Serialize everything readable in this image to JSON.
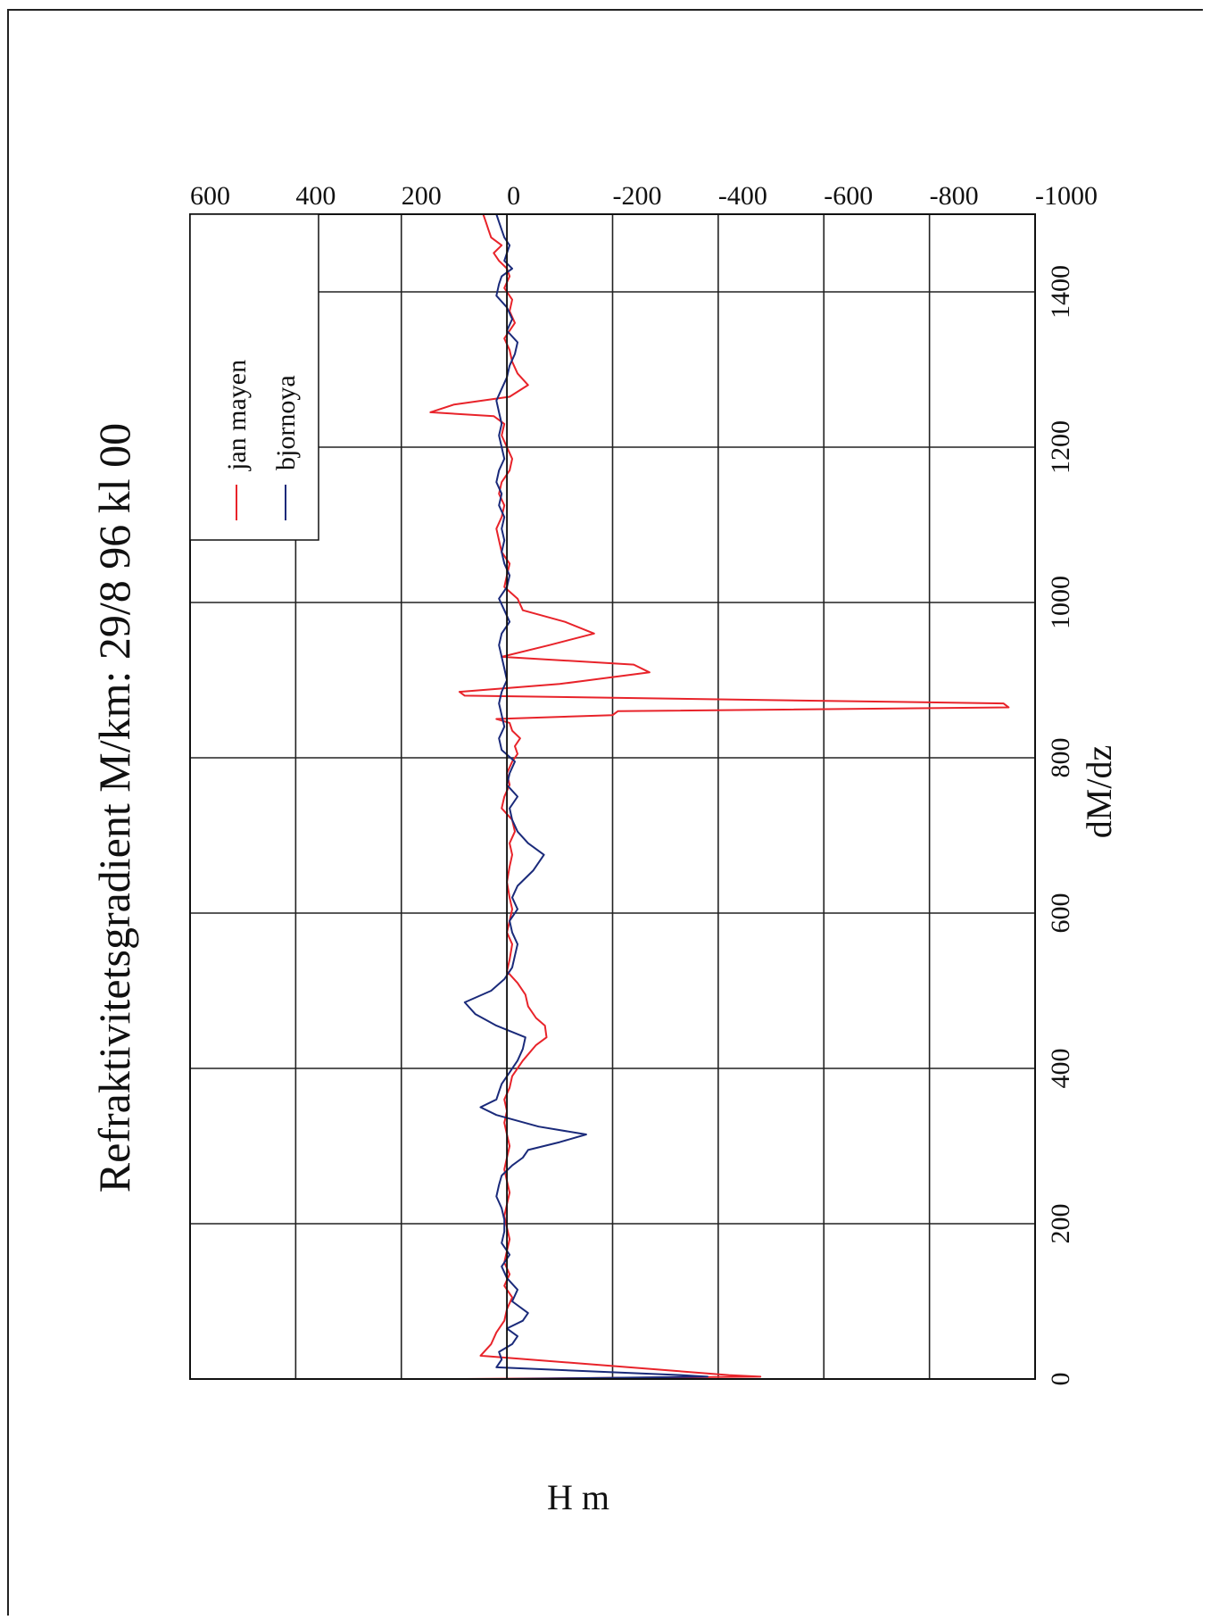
{
  "chart_data": {
    "type": "line",
    "title": "Refraktivitetsgradient M/km: 29/8 96 kl 00",
    "xlabel": "dM/dz",
    "ylabel": "H m",
    "xlim": [
      -1000,
      600
    ],
    "ylim": [
      0,
      1500
    ],
    "xticks": [
      "-1000",
      "-800",
      "-600",
      "-400",
      "-200",
      "0",
      "200",
      "400",
      "600"
    ],
    "yticks": [
      "0",
      "200",
      "400",
      "600",
      "800",
      "1000",
      "1200",
      "1400"
    ],
    "grid": true,
    "legend_position": "top-right",
    "orientation": "rotated 90 degrees counter-clockwise",
    "series": [
      {
        "name": "jan mayen",
        "color": "#e8232a",
        "points": [
          [
            85,
            0
          ],
          [
            -480,
            3
          ],
          [
            -420,
            5
          ],
          [
            50,
            30
          ],
          [
            30,
            45
          ],
          [
            20,
            60
          ],
          [
            5,
            75
          ],
          [
            0,
            90
          ],
          [
            -10,
            105
          ],
          [
            5,
            120
          ],
          [
            -5,
            135
          ],
          [
            5,
            150
          ],
          [
            0,
            165
          ],
          [
            -5,
            180
          ],
          [
            0,
            195
          ],
          [
            5,
            210
          ],
          [
            0,
            225
          ],
          [
            -5,
            240
          ],
          [
            0,
            255
          ],
          [
            5,
            270
          ],
          [
            0,
            285
          ],
          [
            -5,
            300
          ],
          [
            0,
            315
          ],
          [
            5,
            330
          ],
          [
            0,
            345
          ],
          [
            5,
            360
          ],
          [
            -5,
            375
          ],
          [
            -10,
            390
          ],
          [
            -30,
            410
          ],
          [
            -55,
            430
          ],
          [
            -75,
            440
          ],
          [
            -72,
            455
          ],
          [
            -55,
            465
          ],
          [
            -40,
            480
          ],
          [
            -35,
            495
          ],
          [
            -20,
            510
          ],
          [
            0,
            525
          ],
          [
            -5,
            540
          ],
          [
            -10,
            560
          ],
          [
            0,
            575
          ],
          [
            -5,
            590
          ],
          [
            -10,
            605
          ],
          [
            -5,
            620
          ],
          [
            0,
            640
          ],
          [
            -5,
            660
          ],
          [
            -10,
            675
          ],
          [
            -5,
            690
          ],
          [
            -15,
            705
          ],
          [
            -10,
            720
          ],
          [
            10,
            735
          ],
          [
            5,
            750
          ],
          [
            -5,
            765
          ],
          [
            0,
            780
          ],
          [
            -10,
            795
          ],
          [
            -20,
            805
          ],
          [
            -15,
            815
          ],
          [
            -25,
            825
          ],
          [
            -10,
            835
          ],
          [
            -5,
            845
          ],
          [
            20,
            850
          ],
          [
            -200,
            855
          ],
          [
            -210,
            860
          ],
          [
            -950,
            865
          ],
          [
            -940,
            870
          ],
          [
            80,
            880
          ],
          [
            90,
            885
          ],
          [
            -100,
            895
          ],
          [
            -270,
            910
          ],
          [
            -240,
            920
          ],
          [
            10,
            930
          ],
          [
            -80,
            945
          ],
          [
            -165,
            960
          ],
          [
            -110,
            975
          ],
          [
            -30,
            990
          ],
          [
            -20,
            1005
          ],
          [
            5,
            1020
          ],
          [
            0,
            1035
          ],
          [
            -5,
            1050
          ],
          [
            10,
            1065
          ],
          [
            15,
            1080
          ],
          [
            20,
            1095
          ],
          [
            10,
            1110
          ],
          [
            5,
            1125
          ],
          [
            15,
            1140
          ],
          [
            10,
            1155
          ],
          [
            -5,
            1170
          ],
          [
            -10,
            1185
          ],
          [
            0,
            1200
          ],
          [
            10,
            1215
          ],
          [
            5,
            1230
          ],
          [
            25,
            1240
          ],
          [
            145,
            1245
          ],
          [
            100,
            1255
          ],
          [
            -5,
            1265
          ],
          [
            -40,
            1280
          ],
          [
            -20,
            1295
          ],
          [
            -10,
            1310
          ],
          [
            -5,
            1325
          ],
          [
            5,
            1340
          ],
          [
            -15,
            1360
          ],
          [
            -5,
            1375
          ],
          [
            -10,
            1390
          ],
          [
            5,
            1405
          ],
          [
            -5,
            1420
          ],
          [
            0,
            1430
          ],
          [
            15,
            1440
          ],
          [
            25,
            1450
          ],
          [
            10,
            1460
          ],
          [
            30,
            1470
          ],
          [
            35,
            1480
          ],
          [
            40,
            1490
          ],
          [
            45,
            1500
          ]
        ]
      },
      {
        "name": "bjornoya",
        "color": "#1a2a7a",
        "points": [
          [
            0,
            0
          ],
          [
            -380,
            3
          ],
          [
            -330,
            5
          ],
          [
            20,
            15
          ],
          [
            10,
            25
          ],
          [
            15,
            35
          ],
          [
            -10,
            45
          ],
          [
            -20,
            55
          ],
          [
            0,
            65
          ],
          [
            -30,
            75
          ],
          [
            -40,
            85
          ],
          [
            -10,
            100
          ],
          [
            -20,
            115
          ],
          [
            0,
            130
          ],
          [
            10,
            145
          ],
          [
            -5,
            160
          ],
          [
            10,
            175
          ],
          [
            5,
            190
          ],
          [
            5,
            205
          ],
          [
            10,
            220
          ],
          [
            20,
            235
          ],
          [
            15,
            250
          ],
          [
            10,
            262
          ],
          [
            -10,
            275
          ],
          [
            -30,
            285
          ],
          [
            -40,
            295
          ],
          [
            -100,
            305
          ],
          [
            -150,
            315
          ],
          [
            -60,
            325
          ],
          [
            20,
            340
          ],
          [
            50,
            350
          ],
          [
            20,
            360
          ],
          [
            15,
            370
          ],
          [
            10,
            380
          ],
          [
            -5,
            395
          ],
          [
            -20,
            410
          ],
          [
            -30,
            425
          ],
          [
            -35,
            440
          ],
          [
            20,
            455
          ],
          [
            60,
            470
          ],
          [
            80,
            485
          ],
          [
            30,
            500
          ],
          [
            5,
            515
          ],
          [
            -10,
            530
          ],
          [
            -15,
            545
          ],
          [
            -20,
            560
          ],
          [
            -10,
            575
          ],
          [
            -5,
            590
          ],
          [
            -20,
            605
          ],
          [
            -10,
            620
          ],
          [
            -20,
            635
          ],
          [
            -50,
            655
          ],
          [
            -70,
            675
          ],
          [
            -40,
            690
          ],
          [
            -20,
            705
          ],
          [
            -10,
            720
          ],
          [
            -5,
            735
          ],
          [
            -20,
            750
          ],
          [
            0,
            765
          ],
          [
            -5,
            780
          ],
          [
            -15,
            795
          ],
          [
            10,
            810
          ],
          [
            15,
            825
          ],
          [
            5,
            840
          ],
          [
            10,
            855
          ],
          [
            15,
            870
          ],
          [
            10,
            885
          ],
          [
            0,
            900
          ],
          [
            5,
            915
          ],
          [
            10,
            930
          ],
          [
            15,
            945
          ],
          [
            10,
            960
          ],
          [
            -5,
            975
          ],
          [
            5,
            990
          ],
          [
            15,
            1005
          ],
          [
            0,
            1020
          ],
          [
            -5,
            1035
          ],
          [
            5,
            1050
          ],
          [
            10,
            1065
          ],
          [
            5,
            1080
          ],
          [
            10,
            1095
          ],
          [
            5,
            1110
          ],
          [
            15,
            1125
          ],
          [
            10,
            1140
          ],
          [
            20,
            1155
          ],
          [
            15,
            1170
          ],
          [
            5,
            1185
          ],
          [
            10,
            1200
          ],
          [
            15,
            1215
          ],
          [
            10,
            1230
          ],
          [
            15,
            1245
          ],
          [
            20,
            1260
          ],
          [
            10,
            1275
          ],
          [
            0,
            1290
          ],
          [
            -5,
            1305
          ],
          [
            -15,
            1320
          ],
          [
            -20,
            1335
          ],
          [
            0,
            1350
          ],
          [
            -10,
            1365
          ],
          [
            0,
            1380
          ],
          [
            20,
            1395
          ],
          [
            15,
            1410
          ],
          [
            10,
            1420
          ],
          [
            -10,
            1430
          ],
          [
            5,
            1440
          ],
          [
            0,
            1450
          ],
          [
            -5,
            1460
          ],
          [
            5,
            1470
          ],
          [
            10,
            1480
          ],
          [
            15,
            1490
          ],
          [
            20,
            1500
          ]
        ]
      }
    ]
  }
}
